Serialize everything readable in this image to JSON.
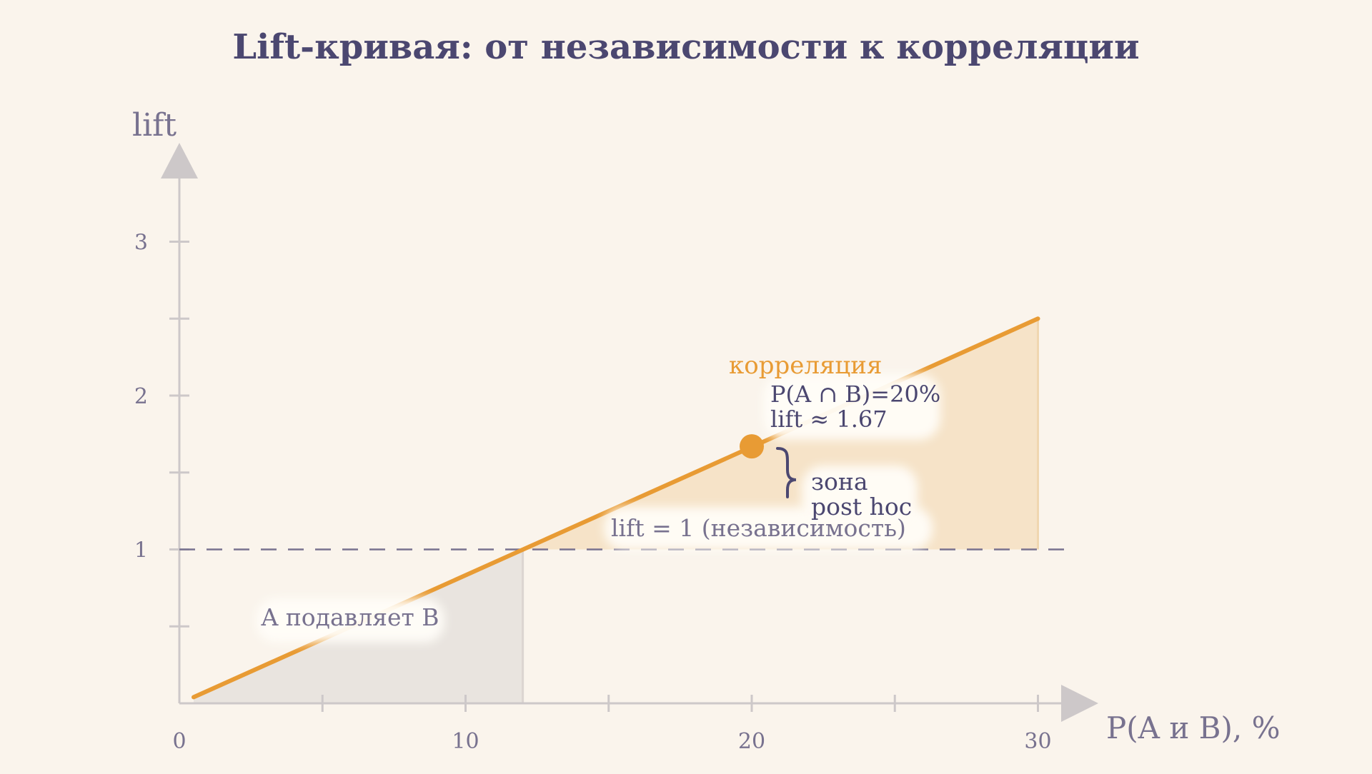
{
  "chart_data": {
    "type": "line",
    "title": "Lift-кривая: от независимости к корреляции",
    "xlabel": "P(A и B), %",
    "ylabel": "lift",
    "xlim": [
      0,
      31
    ],
    "ylim": [
      0,
      3.5
    ],
    "x_ticks": [
      0,
      10,
      20,
      30
    ],
    "x_minor_ticks": [
      5,
      15,
      25
    ],
    "y_ticks": [
      1,
      2,
      3
    ],
    "y_minor_ticks": [
      0.5,
      1.5,
      2.5
    ],
    "series": [
      {
        "x": [
          0.5,
          30
        ],
        "y": [
          0.04,
          2.5
        ],
        "color": "#e89b34"
      }
    ],
    "reference_line": {
      "y": 1,
      "label": "lift = 1 (независимость)",
      "style": "dashed"
    },
    "regions": [
      {
        "label": "A подавляет B",
        "x_from": 0.5,
        "x_to": 12,
        "color": "#e9e4df"
      },
      {
        "label": "корреляция",
        "x_from": 12,
        "x_to": 30,
        "color": "#f6e3c8"
      }
    ],
    "highlight_point": {
      "x": 20,
      "y": 1.67,
      "label_line1": "P(A ∩ B)=20%",
      "label_line2": "lift ≈ 1.67"
    },
    "brace_annotation": {
      "line1": "зона",
      "line2": "post hoc"
    },
    "colors": {
      "background": "#faf4ec",
      "text": "#4b4770",
      "muted_text": "#78728f",
      "axis": "#cdc8c9",
      "accent": "#e89b34"
    }
  }
}
